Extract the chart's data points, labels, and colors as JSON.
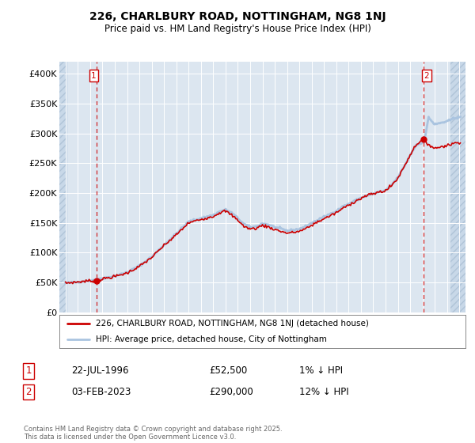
{
  "title_line1": "226, CHARLBURY ROAD, NOTTINGHAM, NG8 1NJ",
  "title_line2": "Price paid vs. HM Land Registry's House Price Index (HPI)",
  "background_color": "#ffffff",
  "plot_bg_color": "#dce6f0",
  "grid_color": "#ffffff",
  "hpi_color": "#aac4e0",
  "price_color": "#cc0000",
  "marker_color": "#cc0000",
  "dashed_line_color": "#cc0000",
  "ylim": [
    0,
    420000
  ],
  "yticks": [
    0,
    50000,
    100000,
    150000,
    200000,
    250000,
    300000,
    350000,
    400000
  ],
  "ytick_labels": [
    "£0",
    "£50K",
    "£100K",
    "£150K",
    "£200K",
    "£250K",
    "£300K",
    "£350K",
    "£400K"
  ],
  "xlim_start": 1993.5,
  "xlim_end": 2026.5,
  "xticks": [
    1994,
    1995,
    1996,
    1997,
    1998,
    1999,
    2000,
    2001,
    2002,
    2003,
    2004,
    2005,
    2006,
    2007,
    2008,
    2009,
    2010,
    2011,
    2012,
    2013,
    2014,
    2015,
    2016,
    2017,
    2018,
    2019,
    2020,
    2021,
    2022,
    2023,
    2024,
    2025,
    2026
  ],
  "sale1_x": 1996.55,
  "sale1_y": 52500,
  "sale1_label": "1",
  "sale2_x": 2023.09,
  "sale2_y": 290000,
  "sale2_label": "2",
  "legend_entry1": "226, CHARLBURY ROAD, NOTTINGHAM, NG8 1NJ (detached house)",
  "legend_entry2": "HPI: Average price, detached house, City of Nottingham",
  "annotation1_date": "22-JUL-1996",
  "annotation1_price": "£52,500",
  "annotation1_hpi": "1% ↓ HPI",
  "annotation2_date": "03-FEB-2023",
  "annotation2_price": "£290,000",
  "annotation2_hpi": "12% ↓ HPI",
  "footer": "Contains HM Land Registry data © Crown copyright and database right 2025.\nThis data is licensed under the Open Government Licence v3.0."
}
